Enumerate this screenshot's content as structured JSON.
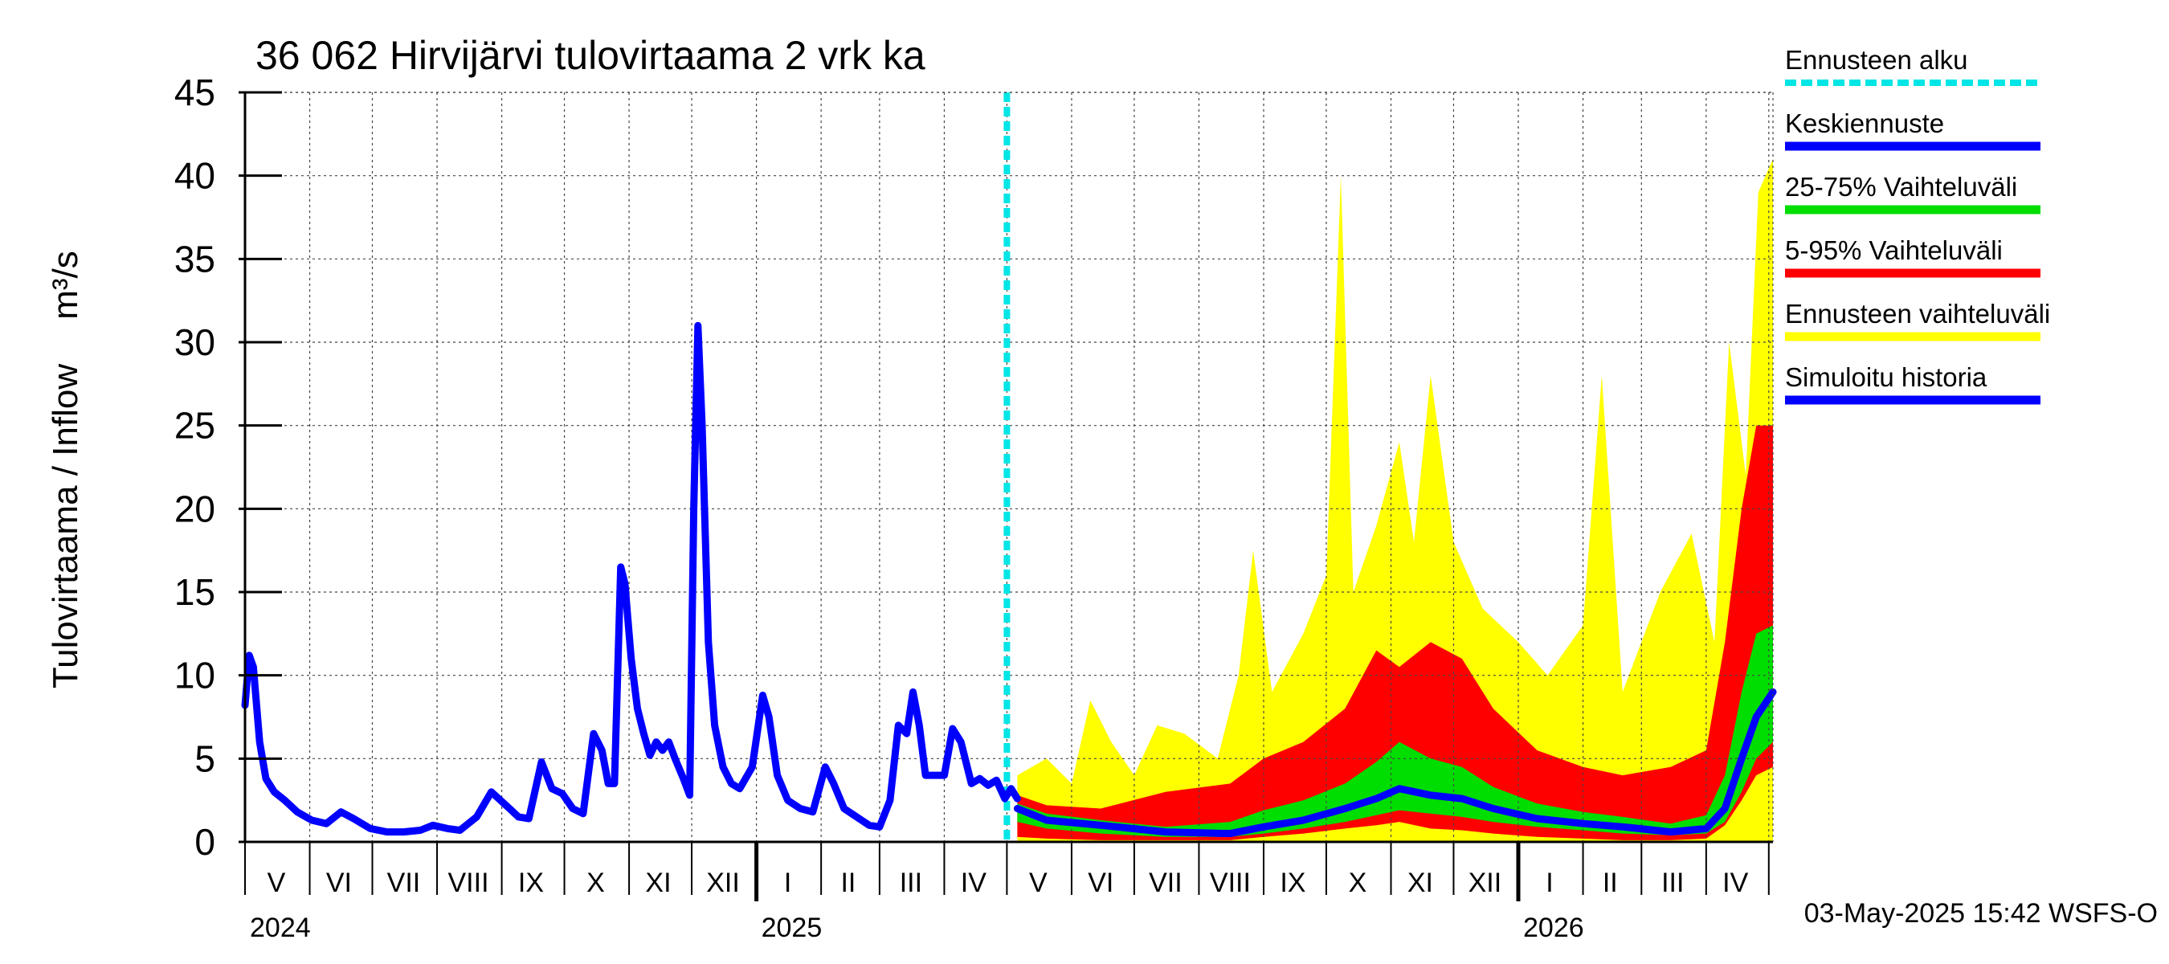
{
  "chart_data": {
    "type": "area",
    "title": "36 062 Hirvijärvi tulovirtaama 2 vrk ka",
    "ylabel": "Tulovirtaama / Inflow",
    "yunit": "m³/s",
    "xlabel": "",
    "ylim": [
      0,
      45
    ],
    "yticks": [
      0,
      5,
      10,
      15,
      20,
      25,
      30,
      35,
      40,
      45
    ],
    "xlim": [
      "2024-05-01",
      "2026-05-03"
    ],
    "grid": true,
    "legend_position": "right",
    "month_labels": [
      {
        "label": "V",
        "date": "2024-05-16"
      },
      {
        "label": "VI",
        "date": "2024-06-15"
      },
      {
        "label": "VII",
        "date": "2024-07-16"
      },
      {
        "label": "VIII",
        "date": "2024-08-16"
      },
      {
        "label": "IX",
        "date": "2024-09-15"
      },
      {
        "label": "X",
        "date": "2024-10-16"
      },
      {
        "label": "XI",
        "date": "2024-11-15"
      },
      {
        "label": "XII",
        "date": "2024-12-16"
      },
      {
        "label": "I",
        "date": "2025-01-16"
      },
      {
        "label": "II",
        "date": "2025-02-14"
      },
      {
        "label": "III",
        "date": "2025-03-16"
      },
      {
        "label": "IV",
        "date": "2025-04-15"
      },
      {
        "label": "V",
        "date": "2025-05-16"
      },
      {
        "label": "VI",
        "date": "2025-06-15"
      },
      {
        "label": "VII",
        "date": "2025-07-16"
      },
      {
        "label": "VIII",
        "date": "2025-08-16"
      },
      {
        "label": "IX",
        "date": "2025-09-15"
      },
      {
        "label": "X",
        "date": "2025-10-16"
      },
      {
        "label": "XI",
        "date": "2025-11-15"
      },
      {
        "label": "XII",
        "date": "2025-12-16"
      },
      {
        "label": "I",
        "date": "2026-01-16"
      },
      {
        "label": "II",
        "date": "2026-02-14"
      },
      {
        "label": "III",
        "date": "2026-03-16"
      },
      {
        "label": "IV",
        "date": "2026-04-15"
      }
    ],
    "month_starts": [
      "2024-05-01",
      "2024-06-01",
      "2024-07-01",
      "2024-08-01",
      "2024-09-01",
      "2024-10-01",
      "2024-11-01",
      "2024-12-01",
      "2025-01-01",
      "2025-02-01",
      "2025-03-01",
      "2025-04-01",
      "2025-05-01",
      "2025-06-01",
      "2025-07-01",
      "2025-08-01",
      "2025-09-01",
      "2025-10-01",
      "2025-11-01",
      "2025-12-01",
      "2026-01-01",
      "2026-02-01",
      "2026-03-01",
      "2026-04-01",
      "2026-05-01"
    ],
    "year_labels": [
      {
        "label": "2024",
        "date": "2024-05-01"
      },
      {
        "label": "2025",
        "date": "2025-01-01"
      },
      {
        "label": "2026",
        "date": "2026-01-01"
      }
    ],
    "forecast_start": "2025-05-01",
    "footer": "03-May-2025 15:42 WSFS-O",
    "legend": [
      {
        "label": "Ennusteen alku",
        "color": "#00e5e5",
        "style": "dashed"
      },
      {
        "label": "Keskiennuste",
        "color": "#0000ff",
        "style": "solid"
      },
      {
        "label": "25-75% Vaihteluväli",
        "color": "#00dd00",
        "style": "solid"
      },
      {
        "label": "5-95% Vaihteluväli",
        "color": "#ff0000",
        "style": "solid"
      },
      {
        "label": "Ennusteen vaihteluväli",
        "color": "#ffff00",
        "style": "solid"
      },
      {
        "label": "Simuloitu historia",
        "color": "#0000ff",
        "style": "solid"
      }
    ],
    "series": [
      {
        "name": "Simuloitu historia",
        "color": "#0000ff",
        "points": [
          [
            "2024-05-01",
            8.2
          ],
          [
            "2024-05-03",
            11.2
          ],
          [
            "2024-05-05",
            10.5
          ],
          [
            "2024-05-08",
            6.0
          ],
          [
            "2024-05-11",
            3.8
          ],
          [
            "2024-05-15",
            3.0
          ],
          [
            "2024-05-20",
            2.5
          ],
          [
            "2024-05-26",
            1.8
          ],
          [
            "2024-06-02",
            1.3
          ],
          [
            "2024-06-09",
            1.1
          ],
          [
            "2024-06-16",
            1.8
          ],
          [
            "2024-06-22",
            1.4
          ],
          [
            "2024-06-30",
            0.8
          ],
          [
            "2024-07-08",
            0.6
          ],
          [
            "2024-07-16",
            0.6
          ],
          [
            "2024-07-24",
            0.7
          ],
          [
            "2024-07-30",
            1.0
          ],
          [
            "2024-08-06",
            0.8
          ],
          [
            "2024-08-12",
            0.7
          ],
          [
            "2024-08-20",
            1.5
          ],
          [
            "2024-08-27",
            3.0
          ],
          [
            "2024-09-03",
            2.2
          ],
          [
            "2024-09-09",
            1.5
          ],
          [
            "2024-09-14",
            1.4
          ],
          [
            "2024-09-20",
            4.8
          ],
          [
            "2024-09-25",
            3.2
          ],
          [
            "2024-09-30",
            2.9
          ],
          [
            "2024-10-05",
            2.0
          ],
          [
            "2024-10-10",
            1.7
          ],
          [
            "2024-10-15",
            6.5
          ],
          [
            "2024-10-19",
            5.5
          ],
          [
            "2024-10-22",
            3.5
          ],
          [
            "2024-10-25",
            3.5
          ],
          [
            "2024-10-28",
            16.5
          ],
          [
            "2024-10-30",
            15.5
          ],
          [
            "2024-11-02",
            11.0
          ],
          [
            "2024-11-05",
            8.0
          ],
          [
            "2024-11-08",
            6.5
          ],
          [
            "2024-11-11",
            5.2
          ],
          [
            "2024-11-14",
            6.0
          ],
          [
            "2024-11-17",
            5.5
          ],
          [
            "2024-11-20",
            6.0
          ],
          [
            "2024-11-23",
            5.0
          ],
          [
            "2024-11-27",
            3.8
          ],
          [
            "2024-11-30",
            2.8
          ],
          [
            "2024-12-02",
            20.0
          ],
          [
            "2024-12-04",
            31.0
          ],
          [
            "2024-12-06",
            25.0
          ],
          [
            "2024-12-09",
            12.0
          ],
          [
            "2024-12-12",
            7.0
          ],
          [
            "2024-12-16",
            4.5
          ],
          [
            "2024-12-20",
            3.5
          ],
          [
            "2024-12-24",
            3.2
          ],
          [
            "2024-12-30",
            4.5
          ],
          [
            "2025-01-04",
            8.8
          ],
          [
            "2025-01-07",
            7.5
          ],
          [
            "2025-01-11",
            4.0
          ],
          [
            "2025-01-16",
            2.5
          ],
          [
            "2025-01-22",
            2.0
          ],
          [
            "2025-01-28",
            1.8
          ],
          [
            "2025-02-03",
            4.5
          ],
          [
            "2025-02-07",
            3.5
          ],
          [
            "2025-02-12",
            2.0
          ],
          [
            "2025-02-18",
            1.5
          ],
          [
            "2025-02-24",
            1.0
          ],
          [
            "2025-03-01",
            0.9
          ],
          [
            "2025-03-06",
            2.5
          ],
          [
            "2025-03-10",
            7.0
          ],
          [
            "2025-03-14",
            6.5
          ],
          [
            "2025-03-17",
            9.0
          ],
          [
            "2025-03-20",
            7.0
          ],
          [
            "2025-03-23",
            4.0
          ],
          [
            "2025-03-28",
            4.0
          ],
          [
            "2025-04-01",
            4.0
          ],
          [
            "2025-04-05",
            6.8
          ],
          [
            "2025-04-09",
            6.0
          ],
          [
            "2025-04-14",
            3.5
          ],
          [
            "2025-04-18",
            3.8
          ],
          [
            "2025-04-22",
            3.4
          ],
          [
            "2025-04-26",
            3.7
          ],
          [
            "2025-04-30",
            2.6
          ],
          [
            "2025-05-03",
            3.2
          ],
          [
            "2025-05-06",
            2.6
          ]
        ]
      },
      {
        "name": "Keskiennuste",
        "color": "#0000ff",
        "points": [
          [
            "2025-05-06",
            2.0
          ],
          [
            "2025-05-20",
            1.3
          ],
          [
            "2025-06-15",
            1.0
          ],
          [
            "2025-07-16",
            0.6
          ],
          [
            "2025-08-16",
            0.5
          ],
          [
            "2025-09-01",
            0.9
          ],
          [
            "2025-09-20",
            1.3
          ],
          [
            "2025-10-10",
            2.0
          ],
          [
            "2025-10-25",
            2.6
          ],
          [
            "2025-11-05",
            3.2
          ],
          [
            "2025-11-20",
            2.8
          ],
          [
            "2025-12-05",
            2.6
          ],
          [
            "2025-12-20",
            2.0
          ],
          [
            "2026-01-10",
            1.4
          ],
          [
            "2026-02-01",
            1.1
          ],
          [
            "2026-02-20",
            0.9
          ],
          [
            "2026-03-15",
            0.6
          ],
          [
            "2026-04-01",
            0.8
          ],
          [
            "2026-04-10",
            2.0
          ],
          [
            "2026-04-18",
            5.0
          ],
          [
            "2026-04-25",
            7.5
          ],
          [
            "2026-05-03",
            9.0
          ]
        ]
      }
    ],
    "bands": [
      {
        "name": "Ennusteen vaihteluväli",
        "color": "#ffff00",
        "points": [
          [
            "2025-05-06",
            0.05,
            4.0
          ],
          [
            "2025-05-20",
            0.05,
            5.0
          ],
          [
            "2025-06-01",
            0.05,
            3.5
          ],
          [
            "2025-06-10",
            0.05,
            8.5
          ],
          [
            "2025-06-20",
            0.05,
            6.0
          ],
          [
            "2025-07-01",
            0.05,
            4.0
          ],
          [
            "2025-07-12",
            0.05,
            7.0
          ],
          [
            "2025-07-25",
            0.05,
            6.5
          ],
          [
            "2025-08-10",
            0.05,
            5.0
          ],
          [
            "2025-08-20",
            0.05,
            10.0
          ],
          [
            "2025-08-27",
            0.05,
            17.5
          ],
          [
            "2025-09-05",
            0.05,
            9.0
          ],
          [
            "2025-09-20",
            0.05,
            12.5
          ],
          [
            "2025-10-01",
            0.05,
            16.0
          ],
          [
            "2025-10-08",
            0.05,
            40.0
          ],
          [
            "2025-10-14",
            0.05,
            15.0
          ],
          [
            "2025-10-25",
            0.05,
            19.0
          ],
          [
            "2025-11-05",
            0.05,
            24.0
          ],
          [
            "2025-11-12",
            0.05,
            18.0
          ],
          [
            "2025-11-20",
            0.05,
            28.0
          ],
          [
            "2025-12-01",
            0.05,
            18.0
          ],
          [
            "2025-12-15",
            0.05,
            14.0
          ],
          [
            "2026-01-01",
            0.05,
            12.0
          ],
          [
            "2026-01-15",
            0.05,
            10.0
          ],
          [
            "2026-02-01",
            0.05,
            13.0
          ],
          [
            "2026-02-10",
            0.05,
            28.0
          ],
          [
            "2026-02-20",
            0.05,
            9.0
          ],
          [
            "2026-03-10",
            0.05,
            15.0
          ],
          [
            "2026-03-25",
            0.05,
            18.5
          ],
          [
            "2026-04-05",
            0.05,
            12.0
          ],
          [
            "2026-04-12",
            0.05,
            30.0
          ],
          [
            "2026-04-20",
            0.05,
            22.0
          ],
          [
            "2026-04-26",
            0.05,
            39.0
          ],
          [
            "2026-05-03",
            0.05,
            41.0
          ]
        ]
      },
      {
        "name": "5-95% Vaihteluväli",
        "color": "#ff0000",
        "points": [
          [
            "2025-05-06",
            0.3,
            2.8
          ],
          [
            "2025-05-20",
            0.2,
            2.2
          ],
          [
            "2025-06-15",
            0.1,
            2.0
          ],
          [
            "2025-07-16",
            0.1,
            3.0
          ],
          [
            "2025-08-16",
            0.1,
            3.5
          ],
          [
            "2025-09-01",
            0.3,
            5.0
          ],
          [
            "2025-09-20",
            0.5,
            6.0
          ],
          [
            "2025-10-10",
            0.8,
            8.0
          ],
          [
            "2025-10-25",
            1.0,
            11.5
          ],
          [
            "2025-11-05",
            1.2,
            10.5
          ],
          [
            "2025-11-20",
            0.8,
            12.0
          ],
          [
            "2025-12-05",
            0.7,
            11.0
          ],
          [
            "2025-12-20",
            0.5,
            8.0
          ],
          [
            "2026-01-10",
            0.3,
            5.5
          ],
          [
            "2026-02-01",
            0.2,
            4.5
          ],
          [
            "2026-02-20",
            0.1,
            4.0
          ],
          [
            "2026-03-15",
            0.1,
            4.5
          ],
          [
            "2026-04-01",
            0.2,
            5.5
          ],
          [
            "2026-04-10",
            1.0,
            12.0
          ],
          [
            "2026-04-18",
            2.5,
            20.0
          ],
          [
            "2026-04-25",
            4.0,
            25.0
          ],
          [
            "2026-05-03",
            4.5,
            25.0
          ]
        ]
      },
      {
        "name": "25-75% Vaihteluväli",
        "color": "#00dd00",
        "points": [
          [
            "2025-05-06",
            1.2,
            2.3
          ],
          [
            "2025-05-20",
            0.8,
            1.7
          ],
          [
            "2025-06-15",
            0.5,
            1.3
          ],
          [
            "2025-07-16",
            0.3,
            0.9
          ],
          [
            "2025-08-16",
            0.3,
            1.2
          ],
          [
            "2025-09-01",
            0.5,
            1.9
          ],
          [
            "2025-09-20",
            0.8,
            2.5
          ],
          [
            "2025-10-10",
            1.2,
            3.5
          ],
          [
            "2025-10-25",
            1.6,
            4.8
          ],
          [
            "2025-11-05",
            1.9,
            6.0
          ],
          [
            "2025-11-20",
            1.7,
            5.0
          ],
          [
            "2025-12-05",
            1.5,
            4.5
          ],
          [
            "2025-12-20",
            1.2,
            3.3
          ],
          [
            "2026-01-10",
            0.9,
            2.3
          ],
          [
            "2026-02-01",
            0.7,
            1.8
          ],
          [
            "2026-02-20",
            0.5,
            1.5
          ],
          [
            "2026-03-15",
            0.4,
            1.1
          ],
          [
            "2026-04-01",
            0.5,
            1.6
          ],
          [
            "2026-04-10",
            1.2,
            4.0
          ],
          [
            "2026-04-18",
            3.0,
            9.0
          ],
          [
            "2026-04-25",
            5.0,
            12.5
          ],
          [
            "2026-05-03",
            6.0,
            13.0
          ]
        ]
      }
    ]
  }
}
